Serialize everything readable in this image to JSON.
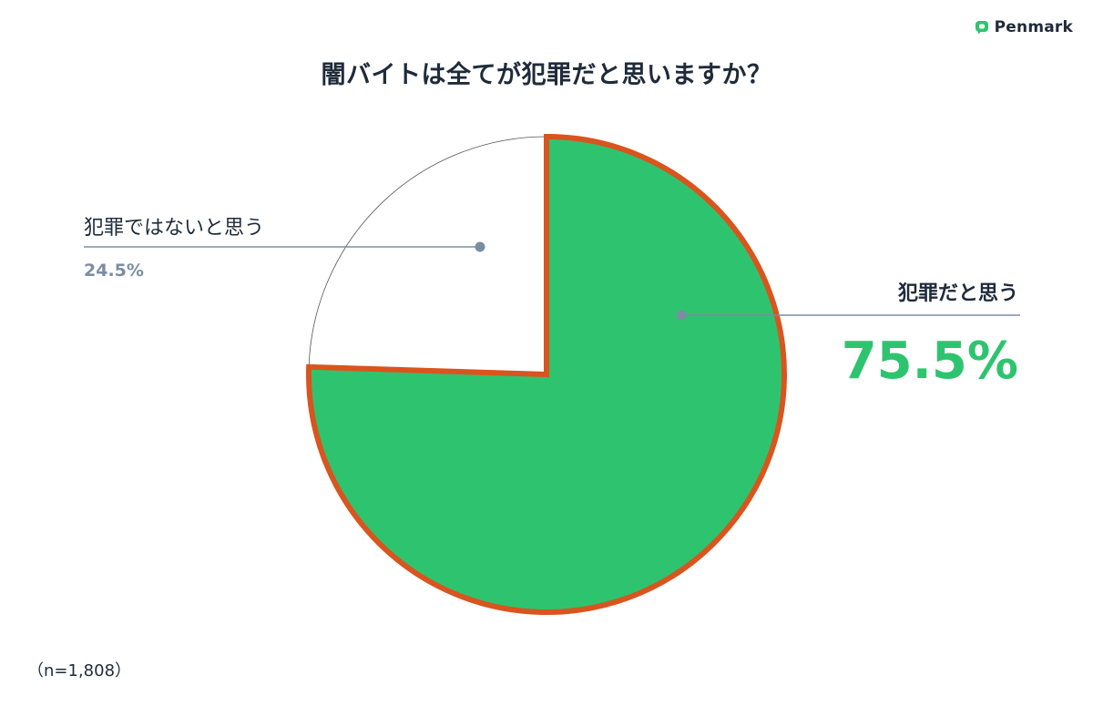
{
  "brand": {
    "logo_text": "Penmark",
    "logo_icon": "chat-bubble-icon",
    "accent": "#2ec46f"
  },
  "chart_data": {
    "type": "pie",
    "title": "闇バイトは全てが犯罪だと思いますか？",
    "slices": [
      {
        "label": "犯罪だと思う",
        "value": 75.5,
        "value_label": "75.5%",
        "color": "#2ec46f",
        "highlighted": true,
        "outline_color": "#d9541e"
      },
      {
        "label": "犯罪ではないと思う",
        "value": 24.5,
        "value_label": "24.5%",
        "color": "#ffffff",
        "highlighted": false
      }
    ],
    "start_angle_deg": 0,
    "direction": "clockwise",
    "note": "（n=1,808）"
  }
}
